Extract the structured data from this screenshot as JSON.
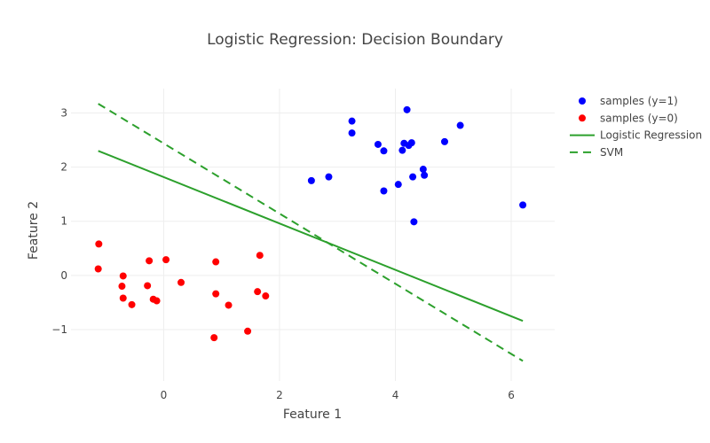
{
  "chart_data": {
    "type": "scatter",
    "title": "Logistic Regression: Decision Boundary",
    "xlabel": "Feature 1",
    "ylabel": "Feature 2",
    "xlim": [
      -1.6,
      6.75
    ],
    "ylim": [
      -1.95,
      3.45
    ],
    "x_ticks": [
      0,
      2,
      4,
      6
    ],
    "y_ticks": [
      -1,
      0,
      1,
      2,
      3
    ],
    "grid": true,
    "legend_position": "top-right",
    "series": [
      {
        "name": "samples (y=1)",
        "kind": "markers",
        "color": "#0000ff",
        "points": [
          [
            2.55,
            1.75
          ],
          [
            2.85,
            1.82
          ],
          [
            3.25,
            2.85
          ],
          [
            3.25,
            2.63
          ],
          [
            3.7,
            2.42
          ],
          [
            3.8,
            2.3
          ],
          [
            3.8,
            1.56
          ],
          [
            4.05,
            1.68
          ],
          [
            4.12,
            2.31
          ],
          [
            4.15,
            2.44
          ],
          [
            4.2,
            3.06
          ],
          [
            4.23,
            2.4
          ],
          [
            4.28,
            2.45
          ],
          [
            4.3,
            1.82
          ],
          [
            4.32,
            0.99
          ],
          [
            4.48,
            1.96
          ],
          [
            4.5,
            1.85
          ],
          [
            4.85,
            2.47
          ],
          [
            5.12,
            2.77
          ],
          [
            6.2,
            1.3
          ]
        ]
      },
      {
        "name": "samples (y=0)",
        "kind": "markers",
        "color": "#ff0000",
        "points": [
          [
            -1.12,
            0.58
          ],
          [
            -1.13,
            0.12
          ],
          [
            -0.7,
            -0.01
          ],
          [
            -0.72,
            -0.2
          ],
          [
            -0.7,
            -0.42
          ],
          [
            -0.55,
            -0.54
          ],
          [
            -0.28,
            -0.19
          ],
          [
            -0.25,
            0.27
          ],
          [
            -0.18,
            -0.44
          ],
          [
            -0.12,
            -0.47
          ],
          [
            0.04,
            0.29
          ],
          [
            0.3,
            -0.13
          ],
          [
            0.87,
            -1.15
          ],
          [
            0.9,
            -0.34
          ],
          [
            0.9,
            0.25
          ],
          [
            1.12,
            -0.55
          ],
          [
            1.45,
            -1.03
          ],
          [
            1.62,
            -0.3
          ],
          [
            1.66,
            0.37
          ],
          [
            1.76,
            -0.38
          ]
        ]
      },
      {
        "name": "Logistic Regression",
        "kind": "line",
        "dash": false,
        "color": "#2ca02c",
        "points": [
          [
            -1.13,
            2.3
          ],
          [
            6.2,
            -0.84
          ]
        ]
      },
      {
        "name": "SVM",
        "kind": "line",
        "dash": true,
        "color": "#2ca02c",
        "points": [
          [
            -1.13,
            3.17
          ],
          [
            6.2,
            -1.58
          ]
        ]
      }
    ]
  }
}
